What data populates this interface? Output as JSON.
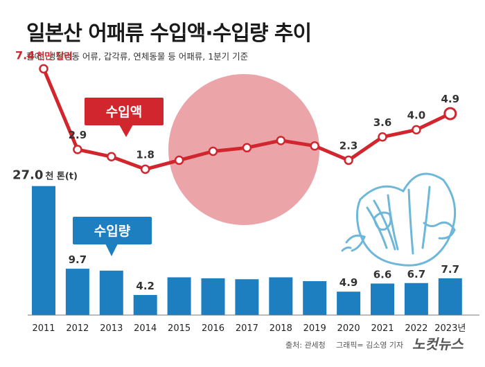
{
  "header": {
    "title": "일본산 어패류 수입액·수입량 추이",
    "subtitle": "활어, 냉장냉동 어류, 갑각류, 연체동물 등 어패류, 1분기 기준"
  },
  "footer": {
    "source": "출처: 관세청",
    "credit": "그래픽= 김소영 기자",
    "brand": "노컷뉴스"
  },
  "colors": {
    "bar": "#1E7FC0",
    "line": "#D1262E",
    "circle": "#EBA5A9",
    "title": "#1a1a1a",
    "decoration": "#6FB7D9"
  },
  "chart_data": {
    "type": "bar",
    "categories": [
      "2011",
      "2012",
      "2013",
      "2014",
      "2015",
      "2016",
      "2017",
      "2018",
      "2019",
      "2020",
      "2021",
      "2022",
      "2023년"
    ],
    "series": [
      {
        "name": "수입량",
        "type": "bar",
        "unit": "천 톤(t)",
        "values": [
          27.0,
          9.7,
          9.3,
          4.2,
          7.9,
          7.7,
          7.5,
          7.9,
          7.1,
          4.9,
          6.6,
          6.7,
          7.7
        ],
        "labels": [
          "27.0",
          "9.7",
          "",
          "4.2",
          "",
          "",
          "",
          "",
          "",
          "4.9",
          "6.6",
          "6.7",
          "7.7"
        ],
        "first_label_unit": "천 톤(t)"
      },
      {
        "name": "수입액",
        "type": "line",
        "unit": "천만 달러",
        "values": [
          7.4,
          2.9,
          2.5,
          1.8,
          2.3,
          2.8,
          3.0,
          3.4,
          3.1,
          2.3,
          3.6,
          4.0,
          4.9
        ],
        "labels": [
          "7.4",
          "2.9",
          "",
          "1.8",
          "",
          "",
          "",
          "",
          "",
          "2.3",
          "3.6",
          "4.0",
          "4.9"
        ],
        "first_label_unit": "천만 달러"
      }
    ]
  }
}
